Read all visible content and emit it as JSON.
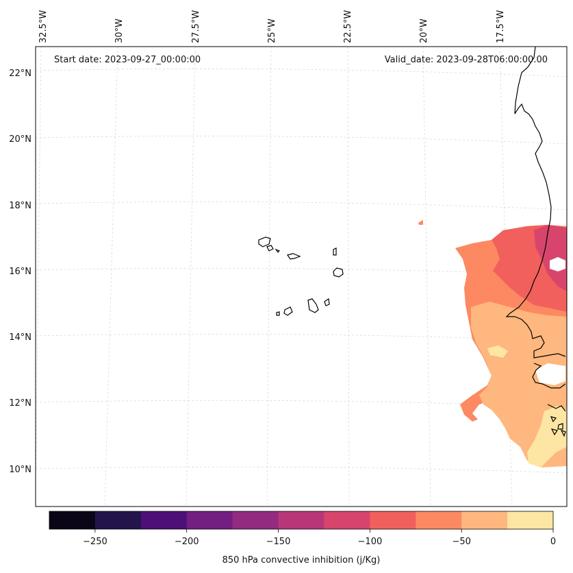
{
  "header": {
    "start_date": "Start date: 2023-09-27_00:00:00",
    "valid_date": "Valid_date: 2023-09-28T06:00:00.00"
  },
  "map": {
    "lon_labels": [
      "32.5°W",
      "30°W",
      "27.5°W",
      "25°W",
      "22.5°W",
      "20°W",
      "17.5°W"
    ],
    "lat_labels": [
      "22°N",
      "20°N",
      "18°N",
      "16°N",
      "14°N",
      "12°N",
      "10°N"
    ],
    "gridlines": true
  },
  "colorbar": {
    "label": "850 hPa convective inhibition (j/Kg)",
    "ticks": [
      "−250",
      "−200",
      "−150",
      "−100",
      "−50",
      "0"
    ],
    "range": [
      -275,
      0
    ],
    "colors": [
      "#0a0617",
      "#23144b",
      "#4c1077",
      "#721f81",
      "#932b80",
      "#b73779",
      "#d8456c",
      "#f1605d",
      "#fc8961",
      "#feb77e",
      "#fde5a3"
    ]
  }
}
